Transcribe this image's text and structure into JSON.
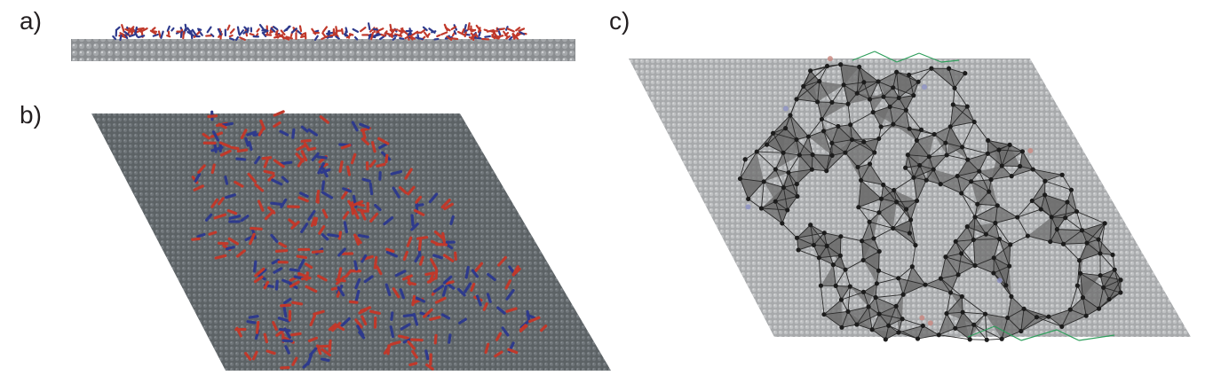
{
  "panels": {
    "a": {
      "label": "a)"
    },
    "b": {
      "label": "b)"
    },
    "c": {
      "label": "c)"
    }
  },
  "colors": {
    "background": "#ffffff",
    "surface_dark": "#5c6265",
    "surface_light": "#b4b6b8",
    "molecule_red": "#c0392b",
    "molecule_blue": "#2e3a8c",
    "network_node": "#1c1c1c",
    "network_edge": "#2a2a2a",
    "network_fill": "#6e6e6e",
    "boundary_edge": "#2e9e5b",
    "label_text": "#231f20"
  }
}
